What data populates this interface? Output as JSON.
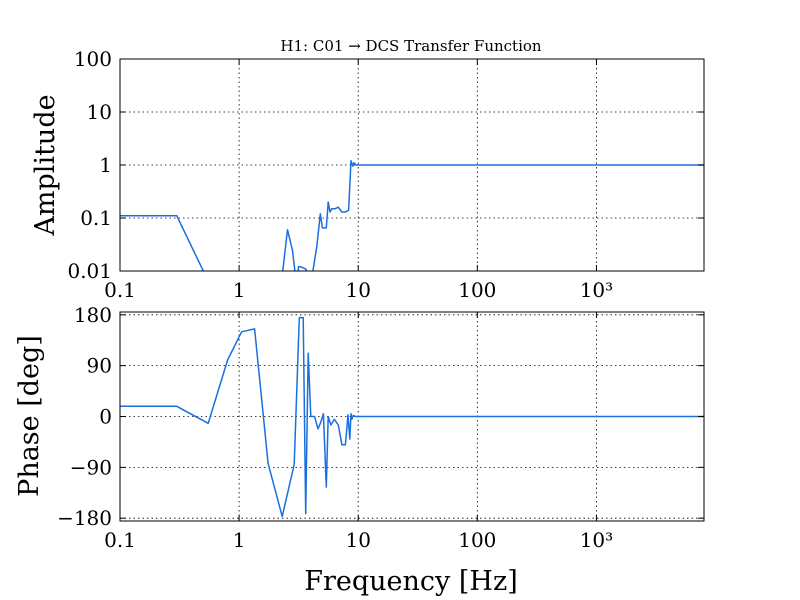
{
  "chart_data": [
    {
      "type": "line",
      "title": "H1: C01 → DCS Transfer Function",
      "xlabel": "",
      "ylabel": "Amplitude",
      "xscale": "log",
      "yscale": "log",
      "xlim": [
        0.1,
        8000
      ],
      "ylim": [
        0.01,
        100
      ],
      "grid": true,
      "color": "#1a6fdf",
      "xticks": [
        {
          "value": 0.1,
          "label": "0.1"
        },
        {
          "value": 1,
          "label": "1"
        },
        {
          "value": 10,
          "label": "10"
        },
        {
          "value": 100,
          "label": "100"
        },
        {
          "value": 1000,
          "label": "10³"
        }
      ],
      "yticks": [
        {
          "value": 0.01,
          "label": "0.01"
        },
        {
          "value": 0.1,
          "label": "0.1"
        },
        {
          "value": 1,
          "label": "1"
        },
        {
          "value": 10,
          "label": "10"
        },
        {
          "value": 100,
          "label": "100"
        }
      ],
      "x": [
        0.1,
        0.3,
        0.5,
        0.55,
        2.3,
        2.55,
        2.8,
        3.05,
        3.15,
        3.3,
        3.6,
        3.8,
        4.1,
        4.5,
        4.8,
        5.0,
        5.4,
        5.6,
        5.8,
        6.0,
        6.4,
        6.8,
        7.3,
        7.8,
        8.3,
        8.7,
        9.0,
        9.2,
        9.6,
        10,
        20,
        50,
        100,
        200,
        500,
        1000,
        2000,
        5000,
        8000
      ],
      "y": [
        0.11,
        0.11,
        0.01,
        0.008,
        0.008,
        0.06,
        0.025,
        0.005,
        0.012,
        0.012,
        0.011,
        0.009,
        0.008,
        0.03,
        0.12,
        0.065,
        0.065,
        0.2,
        0.13,
        0.15,
        0.15,
        0.16,
        0.13,
        0.13,
        0.14,
        1.2,
        0.95,
        1.1,
        1.0,
        1.0,
        1.0,
        1.0,
        1.0,
        1.0,
        1.0,
        1.0,
        1.0,
        1.0,
        1.0
      ]
    },
    {
      "type": "line",
      "title": "",
      "xlabel": "Frequency [Hz]",
      "ylabel": "Phase [deg]",
      "xscale": "log",
      "yscale": "linear",
      "xlim": [
        0.1,
        8000
      ],
      "ylim": [
        -185,
        185
      ],
      "grid": true,
      "color": "#1a6fdf",
      "xticks": [
        {
          "value": 0.1,
          "label": "0.1"
        },
        {
          "value": 1,
          "label": "1"
        },
        {
          "value": 10,
          "label": "10"
        },
        {
          "value": 100,
          "label": "100"
        },
        {
          "value": 1000,
          "label": "10³"
        }
      ],
      "yticks": [
        {
          "value": 180,
          "label": "180"
        },
        {
          "value": 90,
          "label": "90"
        },
        {
          "value": 0,
          "label": "0"
        },
        {
          "value": -90,
          "label": "−90"
        },
        {
          "value": -180,
          "label": "−180"
        }
      ],
      "x": [
        0.1,
        0.3,
        0.55,
        0.8,
        1.05,
        1.35,
        1.75,
        2.3,
        2.9,
        3.2,
        3.45,
        3.62,
        3.8,
        4.0,
        4.3,
        4.6,
        4.85,
        5.1,
        5.4,
        5.6,
        5.9,
        6.3,
        6.8,
        7.3,
        7.8,
        8.2,
        8.5,
        8.7,
        8.85,
        9.1,
        9.5,
        10,
        20,
        50,
        100,
        200,
        500,
        1000,
        2000,
        5000,
        8000
      ],
      "y": [
        18,
        18,
        -12,
        100,
        150,
        155,
        -83,
        -177,
        -85,
        175,
        175,
        -172,
        112,
        0,
        0,
        -22,
        -10,
        5,
        -125,
        0,
        -15,
        -5,
        -15,
        -50,
        -50,
        3,
        -40,
        5,
        -5,
        2,
        0,
        0,
        0,
        0,
        0,
        0,
        0,
        0,
        0,
        0,
        0
      ]
    }
  ]
}
